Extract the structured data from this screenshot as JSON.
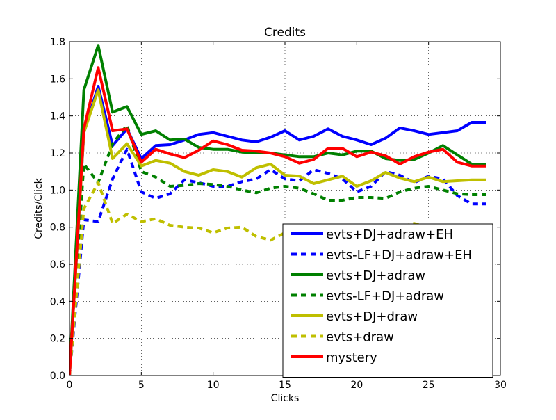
{
  "chart_data": {
    "type": "line",
    "title": "Credits",
    "xlabel": "Clicks",
    "ylabel": "Credits/Click",
    "xlim": [
      0,
      30
    ],
    "ylim": [
      0,
      1.8
    ],
    "xticks": [
      0,
      5,
      10,
      15,
      20,
      25,
      30
    ],
    "yticks": [
      0.0,
      0.2,
      0.4,
      0.6,
      0.8,
      1.0,
      1.2,
      1.4,
      1.6,
      1.8
    ],
    "grid": true,
    "legend_position": "lower-right",
    "x": [
      0,
      1,
      2,
      3,
      4,
      5,
      6,
      7,
      8,
      9,
      10,
      11,
      12,
      13,
      14,
      15,
      16,
      17,
      18,
      19,
      20,
      21,
      22,
      23,
      24,
      25,
      26,
      27,
      28,
      29
    ],
    "series": [
      {
        "name": "evts+DJ+adraw+EH",
        "color": "#0000ff",
        "style": "solid",
        "values": [
          0.0,
          1.31,
          1.56,
          1.24,
          1.33,
          1.17,
          1.24,
          1.245,
          1.27,
          1.3,
          1.31,
          1.29,
          1.27,
          1.26,
          1.285,
          1.32,
          1.27,
          1.29,
          1.33,
          1.29,
          1.27,
          1.245,
          1.28,
          1.335,
          1.32,
          1.3,
          1.31,
          1.32,
          1.365,
          1.365
        ]
      },
      {
        "name": "evts-LF+DJ+adraw+EH",
        "color": "#0000ff",
        "style": "dashed",
        "values": [
          0.0,
          0.84,
          0.83,
          1.06,
          1.22,
          0.99,
          0.955,
          0.98,
          1.055,
          1.04,
          1.02,
          1.02,
          1.045,
          1.06,
          1.11,
          1.06,
          1.05,
          1.11,
          1.09,
          1.06,
          0.99,
          1.02,
          1.1,
          1.08,
          1.04,
          1.075,
          1.06,
          0.97,
          0.925,
          0.925
        ]
      },
      {
        "name": "evts+DJ+adraw",
        "color": "#008000",
        "style": "solid",
        "values": [
          0.0,
          1.54,
          1.78,
          1.42,
          1.45,
          1.3,
          1.32,
          1.27,
          1.275,
          1.23,
          1.22,
          1.22,
          1.205,
          1.2,
          1.2,
          1.19,
          1.18,
          1.18,
          1.2,
          1.19,
          1.21,
          1.21,
          1.17,
          1.16,
          1.165,
          1.2,
          1.24,
          1.19,
          1.14,
          1.14
        ]
      },
      {
        "name": "evts-LF+DJ+adraw",
        "color": "#008000",
        "style": "dashed",
        "values": [
          0.0,
          1.14,
          1.04,
          1.25,
          1.35,
          1.1,
          1.07,
          1.02,
          1.025,
          1.035,
          1.03,
          1.02,
          1.0,
          0.985,
          1.01,
          1.02,
          1.01,
          0.98,
          0.945,
          0.945,
          0.96,
          0.96,
          0.955,
          0.99,
          1.01,
          1.02,
          1.0,
          0.98,
          0.975,
          0.975
        ]
      },
      {
        "name": "evts+DJ+draw",
        "color": "#bfbf00",
        "style": "solid",
        "values": [
          0.0,
          1.31,
          1.54,
          1.17,
          1.25,
          1.13,
          1.16,
          1.145,
          1.1,
          1.08,
          1.11,
          1.1,
          1.07,
          1.12,
          1.14,
          1.08,
          1.075,
          1.035,
          1.055,
          1.075,
          1.02,
          1.05,
          1.095,
          1.065,
          1.045,
          1.07,
          1.045,
          1.05,
          1.055,
          1.055
        ]
      },
      {
        "name": "evts+draw",
        "color": "#bfbf00",
        "style": "dashed",
        "values": [
          0.0,
          0.9,
          1.04,
          0.82,
          0.87,
          0.83,
          0.845,
          0.81,
          0.8,
          0.795,
          0.77,
          0.795,
          0.8,
          0.75,
          0.73,
          0.77,
          0.78,
          0.78,
          0.78,
          0.78,
          0.78,
          0.78,
          0.78,
          0.8,
          0.82,
          0.8,
          0.8,
          0.8,
          0.8,
          0.8
        ]
      },
      {
        "name": "mystery",
        "color": "#ff0000",
        "style": "solid",
        "values": [
          0.0,
          1.33,
          1.66,
          1.32,
          1.33,
          1.15,
          1.22,
          1.195,
          1.175,
          1.215,
          1.265,
          1.245,
          1.215,
          1.21,
          1.2,
          1.18,
          1.145,
          1.165,
          1.225,
          1.225,
          1.18,
          1.205,
          1.185,
          1.14,
          1.18,
          1.205,
          1.22,
          1.15,
          1.13,
          1.13
        ]
      }
    ]
  }
}
